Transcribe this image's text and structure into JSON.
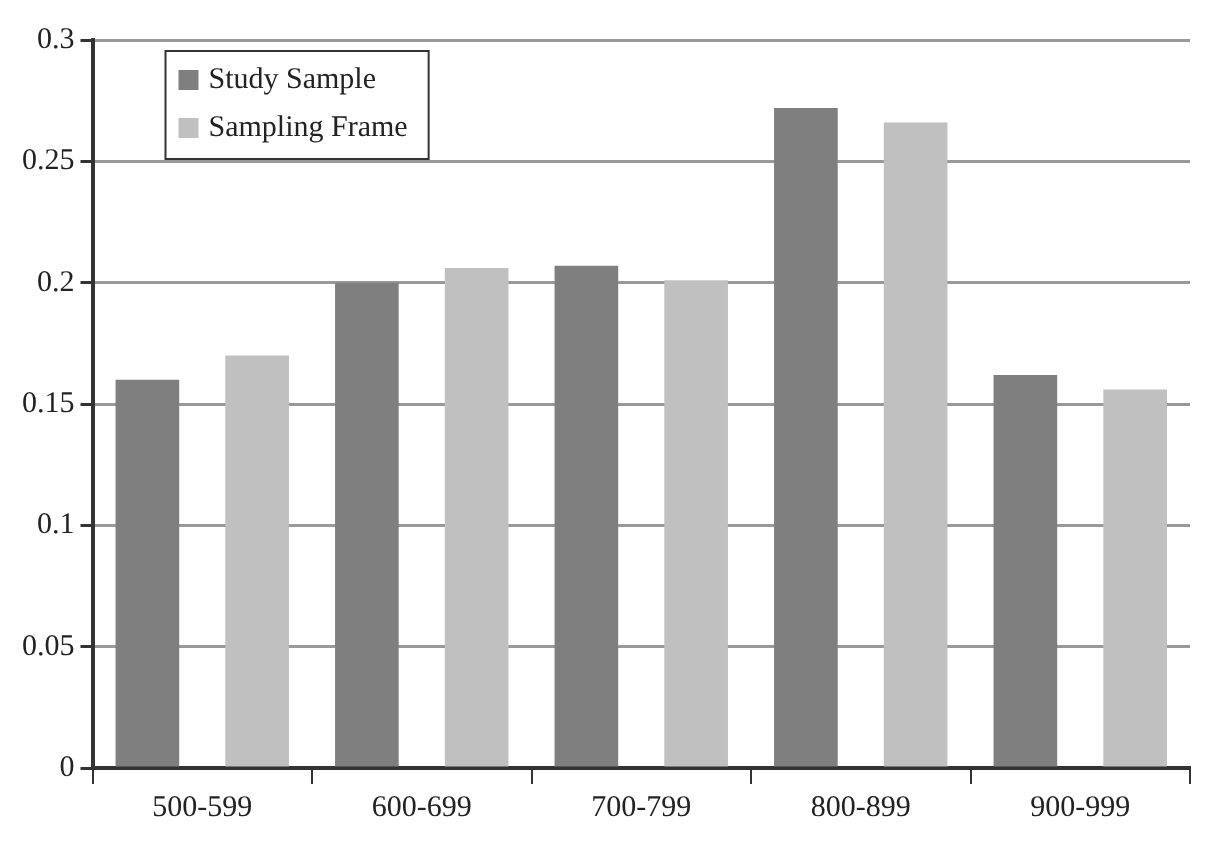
{
  "chart_data": {
    "type": "bar",
    "categories": [
      "500-599",
      "600-699",
      "700-799",
      "800-899",
      "900-999"
    ],
    "series": [
      {
        "name": "Study Sample",
        "color": "#7f7f7f",
        "values": [
          0.16,
          0.2,
          0.207,
          0.272,
          0.162
        ]
      },
      {
        "name": "Sampling Frame",
        "color": "#c0c0c0",
        "values": [
          0.17,
          0.206,
          0.201,
          0.266,
          0.156
        ]
      }
    ],
    "ylim": [
      0,
      0.3
    ],
    "yticks": [
      0,
      0.05,
      0.1,
      0.15,
      0.2,
      0.25,
      0.3
    ],
    "grid": "y",
    "legend": "top left"
  }
}
